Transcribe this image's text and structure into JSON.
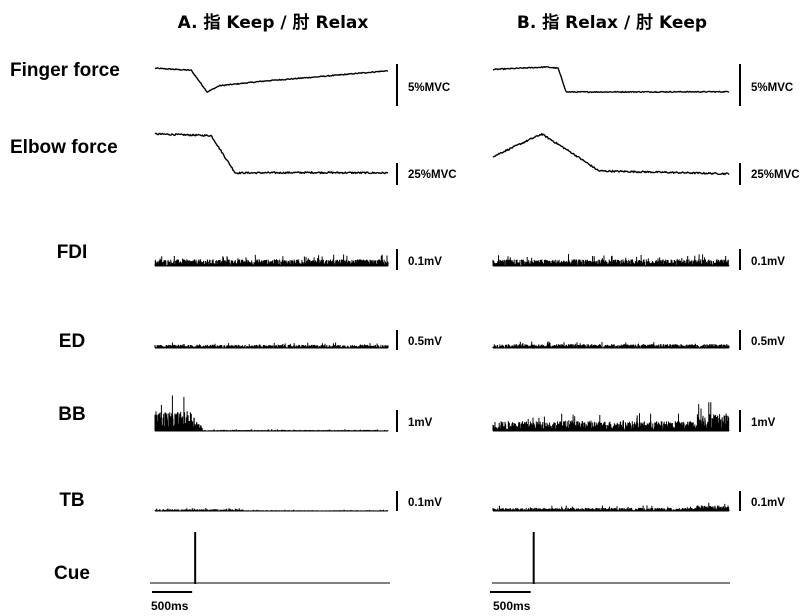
{
  "chart_data": {
    "type": "line",
    "panels": [
      {
        "id": "A",
        "title": "A. 指 Keep / 肘 Relax"
      },
      {
        "id": "B",
        "title": "B. 指 Relax / 肘 Keep"
      }
    ],
    "rows": [
      {
        "id": "finger",
        "label": "Finger force",
        "scale": "5%MVC"
      },
      {
        "id": "elbow",
        "label": "Elbow force",
        "scale": "25%MVC"
      },
      {
        "id": "fdi",
        "label": "FDI",
        "scale": "0.1mV"
      },
      {
        "id": "ed",
        "label": "ED",
        "scale": "0.5mV"
      },
      {
        "id": "bb",
        "label": "BB",
        "scale": "1mV"
      },
      {
        "id": "tb",
        "label": "TB",
        "scale": "0.1mV"
      },
      {
        "id": "cue",
        "label": "Cue",
        "scale": ""
      }
    ],
    "time_scale": "500ms",
    "time_scale_ms": 500,
    "cue_time_ms": 500,
    "record_duration_ms": 2900,
    "force_traces": {
      "A": {
        "finger": {
          "t": [
            0,
            450,
            650,
            800,
            1400,
            2000,
            2900
          ],
          "level": [
            0.95,
            0.87,
            0.0,
            0.25,
            0.45,
            0.6,
            0.85
          ]
        },
        "elbow": {
          "t": [
            0,
            700,
            850,
            1000,
            2000,
            2900
          ],
          "level": [
            1.0,
            0.96,
            0.5,
            0.05,
            0.06,
            0.05
          ]
        }
      },
      "B": {
        "finger": {
          "t": [
            0,
            650,
            800,
            900,
            2900
          ],
          "level": [
            0.9,
            1.0,
            0.95,
            0.0,
            0.01
          ]
        },
        "elbow": {
          "t": [
            0,
            600,
            1000,
            1300,
            2900
          ],
          "level": [
            0.45,
            1.0,
            0.5,
            0.1,
            0.03
          ]
        }
      }
    },
    "emg_envelopes": {
      "A": {
        "fdi": "steady",
        "ed": "steady-low",
        "bb": "active-until-cue",
        "tb": "low"
      },
      "B": {
        "fdi": "steady",
        "ed": "steady",
        "bb": "active-throughout",
        "tb": "active-throughout"
      }
    }
  }
}
